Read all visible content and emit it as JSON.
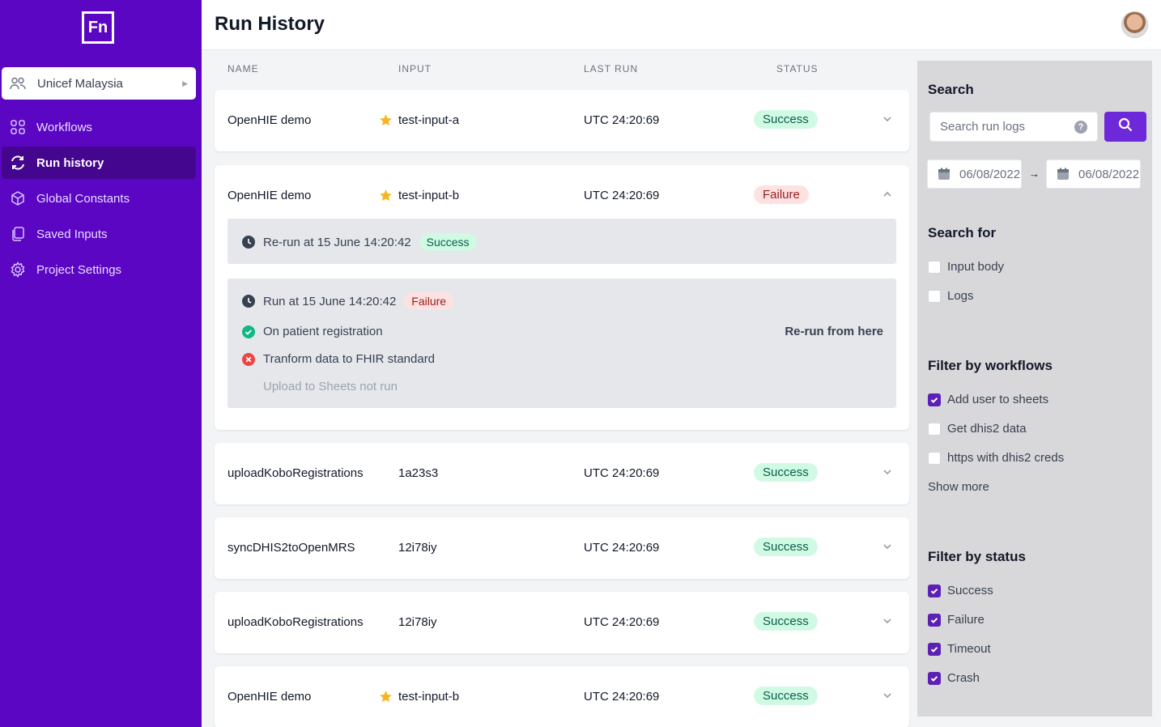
{
  "logo": {
    "text": "Fn"
  },
  "project": {
    "name": "Unicef Malaysia"
  },
  "nav": [
    {
      "label": "Workflows",
      "icon": "grid-icon"
    },
    {
      "label": "Run history",
      "icon": "history-icon",
      "active": true
    },
    {
      "label": "Global Constants",
      "icon": "cube-icon"
    },
    {
      "label": "Saved Inputs",
      "icon": "documents-icon"
    },
    {
      "label": "Project Settings",
      "icon": "gear-icon"
    }
  ],
  "header": {
    "title": "Run History"
  },
  "table": {
    "columns": [
      "NAME",
      "INPUT",
      "LAST RUN",
      "STATUS"
    ],
    "rows": [
      {
        "name": "OpenHIE demo",
        "input": "test-input-a",
        "starred": true,
        "last_run": "UTC 24:20:69",
        "status": "Success"
      },
      {
        "name": "OpenHIE demo",
        "input": "test-input-b",
        "starred": true,
        "last_run": "UTC 24:20:69",
        "status": "Failure",
        "expanded": true
      },
      {
        "name": "uploadKoboRegistrations",
        "input": "1a23s3",
        "starred": false,
        "last_run": "UTC 24:20:69",
        "status": "Success"
      },
      {
        "name": "syncDHIS2toOpenMRS",
        "input": "12i78iy",
        "starred": false,
        "last_run": "UTC 24:20:69",
        "status": "Success"
      },
      {
        "name": "uploadKoboRegistrations",
        "input": "12i78iy",
        "starred": false,
        "last_run": "UTC 24:20:69",
        "status": "Success"
      },
      {
        "name": "OpenHIE demo",
        "input": "test-input-b",
        "starred": true,
        "last_run": "UTC 24:20:69",
        "status": "Success"
      }
    ],
    "expanded": {
      "rerun": {
        "label": "Re-run at 15 June 14:20:42",
        "status": "Success"
      },
      "run": {
        "label": "Run at 15 June 14:20:42",
        "status": "Failure"
      },
      "steps": [
        {
          "label": "On patient registration",
          "state": "success"
        },
        {
          "label": "Tranform data to FHIR standard",
          "state": "failure"
        },
        {
          "label": "Upload to Sheets not run",
          "state": "not-run"
        }
      ],
      "rerun_link": "Re-run from here"
    }
  },
  "panel": {
    "search_title": "Search",
    "search_placeholder": "Search run logs",
    "help_glyph": "?",
    "date_from": "06/08/2022",
    "date_to": "06/08/2022",
    "arrow": "→",
    "search_for_title": "Search for",
    "search_for": [
      {
        "label": "Input body",
        "checked": false
      },
      {
        "label": "Logs",
        "checked": false
      }
    ],
    "workflows_title": "Filter by workflows",
    "workflows": [
      {
        "label": "Add user to sheets",
        "checked": true
      },
      {
        "label": "Get dhis2 data",
        "checked": false
      },
      {
        "label": "https with dhis2 creds",
        "checked": false
      }
    ],
    "show_more": "Show more",
    "status_title": "Filter by status",
    "statuses": [
      {
        "label": "Success",
        "checked": true
      },
      {
        "label": "Failure",
        "checked": true
      },
      {
        "label": "Timeout",
        "checked": true
      },
      {
        "label": "Crash",
        "checked": true
      }
    ]
  },
  "colors": {
    "sidebar": "#5b06c2",
    "accent": "#6d28d9",
    "success_bg": "#d1fae5",
    "failure_bg": "#fee2e2"
  }
}
